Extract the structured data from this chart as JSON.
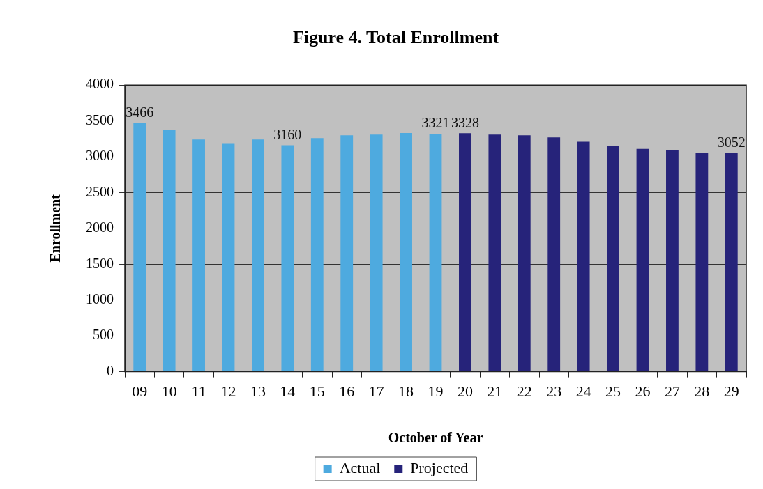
{
  "chart_data": {
    "type": "bar",
    "title": "Figure 4. Total Enrollment",
    "xlabel": "October of Year",
    "ylabel": "Enrollment",
    "categories": [
      "09",
      "10",
      "11",
      "12",
      "13",
      "14",
      "15",
      "16",
      "17",
      "18",
      "19",
      "20",
      "21",
      "22",
      "23",
      "24",
      "25",
      "26",
      "27",
      "28",
      "29"
    ],
    "series": [
      {
        "name": "Actual",
        "color": "#4eaadf",
        "values": [
          3466,
          3380,
          3240,
          3180,
          3240,
          3160,
          3260,
          3300,
          3310,
          3330,
          3321,
          null,
          null,
          null,
          null,
          null,
          null,
          null,
          null,
          null,
          null
        ],
        "value_labels": [
          "3466",
          null,
          null,
          null,
          null,
          "3160",
          null,
          null,
          null,
          null,
          "3321",
          null,
          null,
          null,
          null,
          null,
          null,
          null,
          null,
          null,
          null
        ]
      },
      {
        "name": "Projected",
        "color": "#26237a",
        "values": [
          null,
          null,
          null,
          null,
          null,
          null,
          null,
          null,
          null,
          null,
          null,
          3328,
          3310,
          3300,
          3270,
          3210,
          3150,
          3110,
          3090,
          3060,
          3052
        ],
        "value_labels": [
          null,
          null,
          null,
          null,
          null,
          null,
          null,
          null,
          null,
          null,
          null,
          "3328",
          null,
          null,
          null,
          null,
          null,
          null,
          null,
          null,
          "3052"
        ]
      }
    ],
    "ylim": [
      0,
      4000
    ],
    "yticks": [
      0,
      500,
      1000,
      1500,
      2000,
      2500,
      3000,
      3500,
      4000
    ],
    "grid": "y",
    "legend": "bottom"
  }
}
